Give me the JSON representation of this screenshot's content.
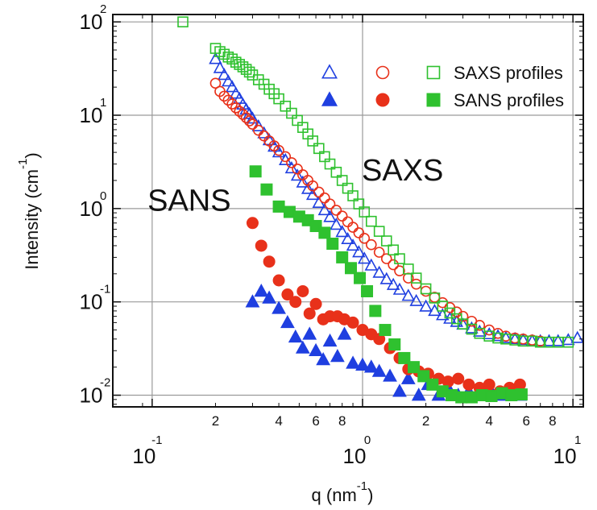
{
  "colors": {
    "blue": "#1f3fe0",
    "red": "#e8311a",
    "green": "#2fc12f",
    "grid": "#9a9a9a",
    "frame": "#111111"
  },
  "chart_data": {
    "type": "scatter",
    "title": "",
    "xlabel": {
      "base": "q (nm",
      "sup": "-1",
      "close": ")"
    },
    "ylabel": {
      "base": "Intensity (cm",
      "sup": "-1",
      "close": ")"
    },
    "x_scale": "log",
    "y_scale": "log",
    "xlim": [
      0.065,
      11.2
    ],
    "ylim": [
      0.0075,
      120
    ],
    "grid": true,
    "legend_position": "top-right",
    "x_major_ticks": [
      {
        "value": 0.1,
        "base": "10",
        "exp": "-1"
      },
      {
        "value": 1,
        "base": "10",
        "exp": "0"
      },
      {
        "value": 10,
        "base": "10",
        "exp": "1"
      }
    ],
    "x_minor_ticks": [
      {
        "value": 0.2,
        "label": "2"
      },
      {
        "value": 0.4,
        "label": "4"
      },
      {
        "value": 0.6,
        "label": "6"
      },
      {
        "value": 0.8,
        "label": "8"
      },
      {
        "value": 2,
        "label": "2"
      },
      {
        "value": 4,
        "label": "4"
      },
      {
        "value": 6,
        "label": "6"
      },
      {
        "value": 8,
        "label": "8"
      }
    ],
    "y_major_ticks": [
      {
        "value": 0.01,
        "base": "10",
        "exp": "-2"
      },
      {
        "value": 0.1,
        "base": "10",
        "exp": "-1"
      },
      {
        "value": 1,
        "base": "10",
        "exp": "0"
      },
      {
        "value": 10,
        "base": "10",
        "exp": "1"
      },
      {
        "value": 100,
        "base": "10",
        "exp": "2"
      }
    ],
    "annotations": [
      {
        "text": "SAXS",
        "x": 1.55,
        "y": 2.0
      },
      {
        "text": "SANS",
        "x": 0.15,
        "y": 0.95
      }
    ],
    "legend": [
      {
        "label": "SAXS profiles",
        "markers": [
          "blue-open-triangle",
          "red-open-circle",
          "green-open-square"
        ]
      },
      {
        "label": "SANS profiles",
        "markers": [
          "blue-filled-triangle",
          "red-filled-circle",
          "green-filled-square"
        ]
      }
    ],
    "series": [
      {
        "color": "blue",
        "marker": "triangle",
        "filled": false,
        "x": [
          0.2,
          0.21,
          0.22,
          0.23,
          0.24,
          0.25,
          0.26,
          0.27,
          0.28,
          0.29,
          0.3,
          0.32,
          0.34,
          0.36,
          0.38,
          0.4,
          0.43,
          0.46,
          0.49,
          0.52,
          0.55,
          0.58,
          0.62,
          0.66,
          0.7,
          0.75,
          0.8,
          0.85,
          0.9,
          0.96,
          1.02,
          1.1,
          1.2,
          1.3,
          1.4,
          1.5,
          1.65,
          1.8,
          2.0,
          2.2,
          2.4,
          2.6,
          2.8,
          3.0,
          3.3,
          3.6,
          4.0,
          4.4,
          4.8,
          5.3,
          5.8,
          6.4,
          7.0,
          7.7,
          8.5,
          9.5,
          10.5
        ],
        "y": [
          40,
          32,
          27,
          23,
          20,
          17,
          15,
          13,
          11.5,
          10.3,
          9.2,
          7.6,
          6.4,
          5.4,
          4.6,
          4.0,
          3.3,
          2.7,
          2.25,
          1.9,
          1.62,
          1.4,
          1.15,
          0.96,
          0.81,
          0.67,
          0.56,
          0.47,
          0.4,
          0.34,
          0.29,
          0.245,
          0.205,
          0.175,
          0.152,
          0.135,
          0.116,
          0.102,
          0.089,
          0.08,
          0.072,
          0.066,
          0.061,
          0.057,
          0.052,
          0.048,
          0.045,
          0.043,
          0.041,
          0.04,
          0.039,
          0.038,
          0.038,
          0.038,
          0.038,
          0.039,
          0.041
        ]
      },
      {
        "color": "red",
        "marker": "circle",
        "filled": false,
        "x": [
          0.2,
          0.21,
          0.22,
          0.23,
          0.24,
          0.25,
          0.26,
          0.27,
          0.28,
          0.29,
          0.3,
          0.32,
          0.34,
          0.36,
          0.38,
          0.4,
          0.43,
          0.46,
          0.49,
          0.52,
          0.55,
          0.58,
          0.62,
          0.66,
          0.7,
          0.75,
          0.8,
          0.85,
          0.9,
          0.96,
          1.02,
          1.1,
          1.2,
          1.3,
          1.4,
          1.5,
          1.65,
          1.8,
          2.0,
          2.2,
          2.4,
          2.6,
          2.8,
          3.0,
          3.3,
          3.6,
          4.0,
          4.4,
          4.8,
          5.3,
          5.8,
          6.4,
          7.0
        ],
        "y": [
          22,
          18,
          16,
          14.5,
          13.2,
          12,
          11,
          10.2,
          9.4,
          8.7,
          8,
          6.9,
          6,
          5.3,
          4.7,
          4.2,
          3.6,
          3.1,
          2.65,
          2.3,
          2.0,
          1.75,
          1.5,
          1.3,
          1.12,
          0.96,
          0.83,
          0.72,
          0.63,
          0.55,
          0.48,
          0.41,
          0.34,
          0.29,
          0.25,
          0.215,
          0.18,
          0.155,
          0.13,
          0.112,
          0.098,
          0.087,
          0.078,
          0.07,
          0.062,
          0.056,
          0.05,
          0.046,
          0.043,
          0.041,
          0.04,
          0.039,
          0.038
        ]
      },
      {
        "color": "green",
        "marker": "square",
        "filled": false,
        "x": [
          0.14,
          0.2,
          0.21,
          0.22,
          0.23,
          0.24,
          0.25,
          0.26,
          0.27,
          0.28,
          0.29,
          0.3,
          0.32,
          0.34,
          0.36,
          0.38,
          0.4,
          0.43,
          0.46,
          0.49,
          0.52,
          0.55,
          0.58,
          0.62,
          0.66,
          0.7,
          0.75,
          0.8,
          0.85,
          0.9,
          0.96,
          1.02,
          1.1,
          1.2,
          1.3,
          1.4,
          1.5,
          1.65,
          1.8,
          2.0,
          2.2,
          2.4,
          2.6,
          2.8,
          3.0,
          3.3,
          3.6,
          4.0,
          4.4,
          4.8,
          5.3,
          5.8,
          6.4,
          7.0,
          7.7,
          8.5,
          9.5
        ],
        "y": [
          100,
          52,
          48,
          45,
          42,
          40,
          37,
          35,
          33,
          31,
          29,
          27,
          24,
          21.5,
          19,
          17,
          15,
          12.5,
          10.5,
          8.8,
          7.4,
          6.3,
          5.3,
          4.4,
          3.6,
          3.0,
          2.45,
          2.0,
          1.65,
          1.37,
          1.12,
          0.92,
          0.73,
          0.57,
          0.45,
          0.36,
          0.29,
          0.225,
          0.18,
          0.138,
          0.11,
          0.09,
          0.076,
          0.066,
          0.058,
          0.051,
          0.046,
          0.043,
          0.041,
          0.04,
          0.039,
          0.038,
          0.038,
          0.037,
          0.037,
          0.037,
          0.037
        ]
      },
      {
        "color": "blue",
        "marker": "triangle",
        "filled": true,
        "x": [
          0.3,
          0.33,
          0.36,
          0.4,
          0.44,
          0.48,
          0.52,
          0.56,
          0.6,
          0.65,
          0.7,
          0.76,
          0.82,
          0.9,
          1.0,
          1.1,
          1.2,
          1.35,
          1.5,
          1.65,
          1.85,
          2.05,
          2.3,
          2.55,
          2.85,
          3.2,
          3.6,
          4.0,
          4.5,
          5.0,
          5.6
        ],
        "y": [
          0.1,
          0.13,
          0.11,
          0.085,
          0.06,
          0.042,
          0.032,
          0.045,
          0.03,
          0.024,
          0.038,
          0.026,
          0.045,
          0.022,
          0.021,
          0.02,
          0.018,
          0.016,
          0.011,
          0.015,
          0.01,
          0.013,
          0.01,
          0.012,
          0.01,
          0.011,
          0.01,
          0.012,
          0.01,
          0.011,
          0.01
        ]
      },
      {
        "color": "red",
        "marker": "circle",
        "filled": true,
        "x": [
          0.3,
          0.33,
          0.36,
          0.4,
          0.44,
          0.48,
          0.52,
          0.56,
          0.6,
          0.65,
          0.7,
          0.76,
          0.82,
          0.9,
          1.0,
          1.1,
          1.2,
          1.35,
          1.5,
          1.65,
          1.85,
          2.05,
          2.3,
          2.55,
          2.85,
          3.2,
          3.6,
          4.0,
          4.5,
          5.0,
          5.6
        ],
        "y": [
          0.7,
          0.4,
          0.27,
          0.17,
          0.12,
          0.1,
          0.13,
          0.075,
          0.095,
          0.065,
          0.07,
          0.07,
          0.065,
          0.06,
          0.05,
          0.045,
          0.04,
          0.032,
          0.025,
          0.019,
          0.018,
          0.017,
          0.015,
          0.014,
          0.015,
          0.013,
          0.012,
          0.013,
          0.011,
          0.012,
          0.013
        ]
      },
      {
        "color": "green",
        "marker": "square",
        "filled": true,
        "x": [
          0.31,
          0.35,
          0.4,
          0.45,
          0.5,
          0.55,
          0.6,
          0.66,
          0.72,
          0.8,
          0.88,
          0.97,
          1.05,
          1.15,
          1.28,
          1.42,
          1.58,
          1.75,
          1.95,
          2.15,
          2.4,
          2.65,
          2.95,
          3.3,
          3.7,
          4.1,
          4.6,
          5.1,
          5.7
        ],
        "y": [
          2.5,
          1.6,
          1.05,
          0.92,
          0.82,
          0.75,
          0.65,
          0.55,
          0.42,
          0.3,
          0.23,
          0.18,
          0.13,
          0.08,
          0.05,
          0.035,
          0.025,
          0.02,
          0.016,
          0.013,
          0.011,
          0.01,
          0.0095,
          0.0095,
          0.01,
          0.0098,
          0.0105,
          0.01,
          0.0102
        ]
      }
    ]
  }
}
